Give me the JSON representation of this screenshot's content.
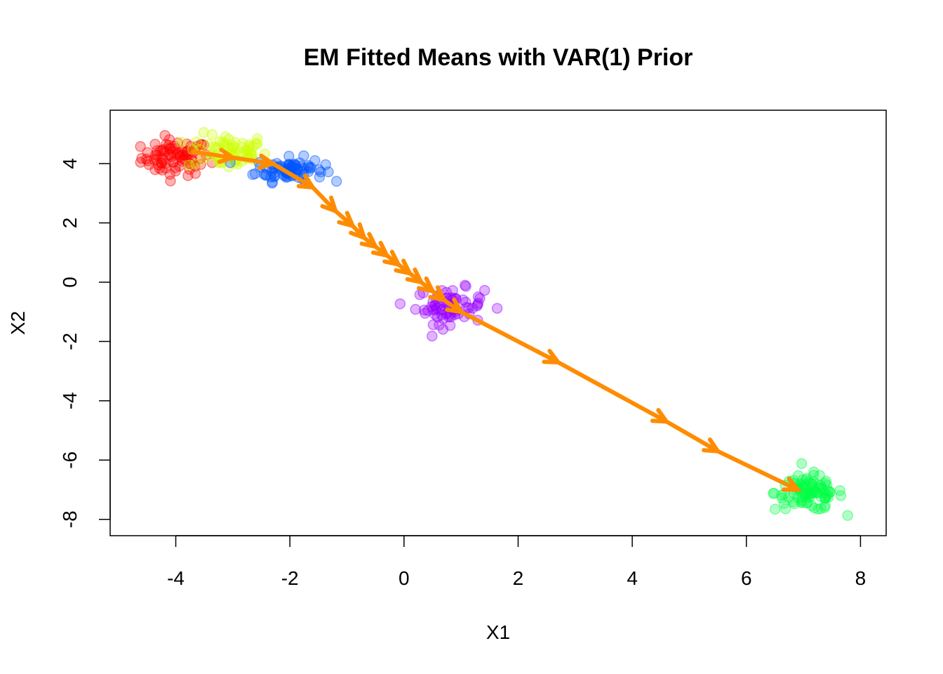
{
  "chart_data": {
    "type": "scatter",
    "title": "EM Fitted Means with VAR(1) Prior",
    "xlabel": "X1",
    "ylabel": "X2",
    "xlim": [
      -5.15,
      8.45
    ],
    "ylim": [
      -8.55,
      5.8
    ],
    "xticks": [
      -4,
      -2,
      0,
      2,
      4,
      6,
      8
    ],
    "yticks": [
      -8,
      -6,
      -4,
      -2,
      0,
      2,
      4
    ],
    "grid": false,
    "legend": "none",
    "clusters": [
      {
        "color": "#ff0000",
        "center": [
          -4.0,
          4.2
        ],
        "spread": [
          0.3,
          0.3
        ],
        "n": 80
      },
      {
        "color": "#ccff00",
        "center": [
          -3.1,
          4.4
        ],
        "spread": [
          0.35,
          0.3
        ],
        "n": 60
      },
      {
        "color": "#0055ff",
        "center": [
          -2.0,
          3.8
        ],
        "spread": [
          0.3,
          0.2
        ],
        "n": 80
      },
      {
        "color": "#9900ff",
        "center": [
          0.8,
          -0.8
        ],
        "spread": [
          0.3,
          0.3
        ],
        "n": 70
      },
      {
        "color": "#00ff44",
        "center": [
          7.1,
          -7.1
        ],
        "spread": [
          0.3,
          0.3
        ],
        "n": 90
      }
    ],
    "series": [
      {
        "color": "#ff8c00",
        "x": [
          -3.7,
          -3.0,
          -2.3,
          -1.6,
          -1.2,
          -0.9,
          -0.7,
          -0.5,
          -0.3,
          -0.1,
          0.1,
          0.3,
          0.5,
          0.7,
          1.0,
          2.7,
          4.6,
          5.5,
          6.9
        ],
        "y": [
          4.4,
          4.2,
          4.0,
          3.2,
          2.4,
          1.9,
          1.5,
          1.2,
          0.9,
          0.6,
          0.3,
          0.0,
          -0.3,
          -0.6,
          -1.0,
          -2.7,
          -4.7,
          -5.7,
          -7.0
        ]
      }
    ]
  }
}
